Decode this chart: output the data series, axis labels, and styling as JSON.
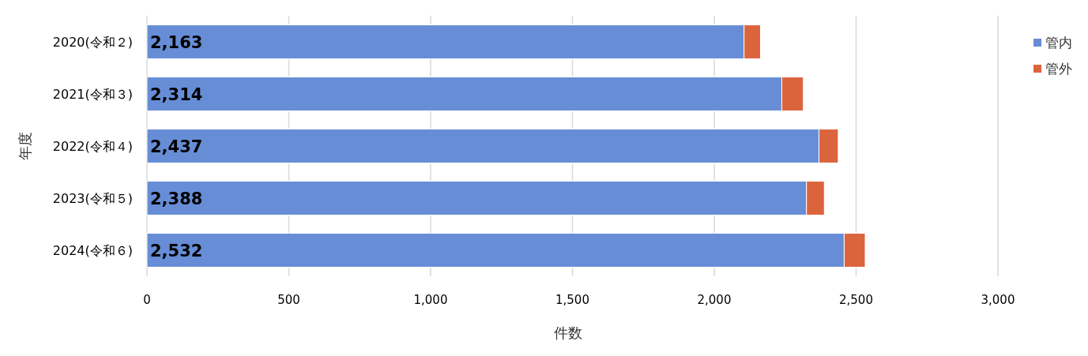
{
  "chart_data": {
    "type": "bar",
    "orientation": "horizontal",
    "stacked": true,
    "xlabel": "件数",
    "ylabel": "年度",
    "categories": [
      "2020(令和２)",
      "2021(令和３)",
      "2022(令和４)",
      "2023(令和５)",
      "2024(令和６)"
    ],
    "series": [
      {
        "name": "管内",
        "color": "#668dd6",
        "values": [
          2105,
          2238,
          2369,
          2325,
          2458
        ]
      },
      {
        "name": "管外",
        "color": "#dc643d",
        "values": [
          58,
          76,
          68,
          63,
          74
        ]
      }
    ],
    "totals": [
      "2,163",
      "2,314",
      "2,437",
      "2,388",
      "2,532"
    ],
    "xlim": [
      0,
      3000
    ],
    "xticks": [
      0,
      {
        "value": 500,
        "label": "500"
      },
      {
        "value": 1000,
        "label": "1,000"
      },
      {
        "value": 1500,
        "label": "1,500"
      },
      {
        "value": 2000,
        "label": "2,000"
      },
      {
        "value": 2500,
        "label": "2,500"
      },
      {
        "value": 3000,
        "label": "3,000"
      }
    ],
    "grid": "x",
    "legend": "top right"
  }
}
